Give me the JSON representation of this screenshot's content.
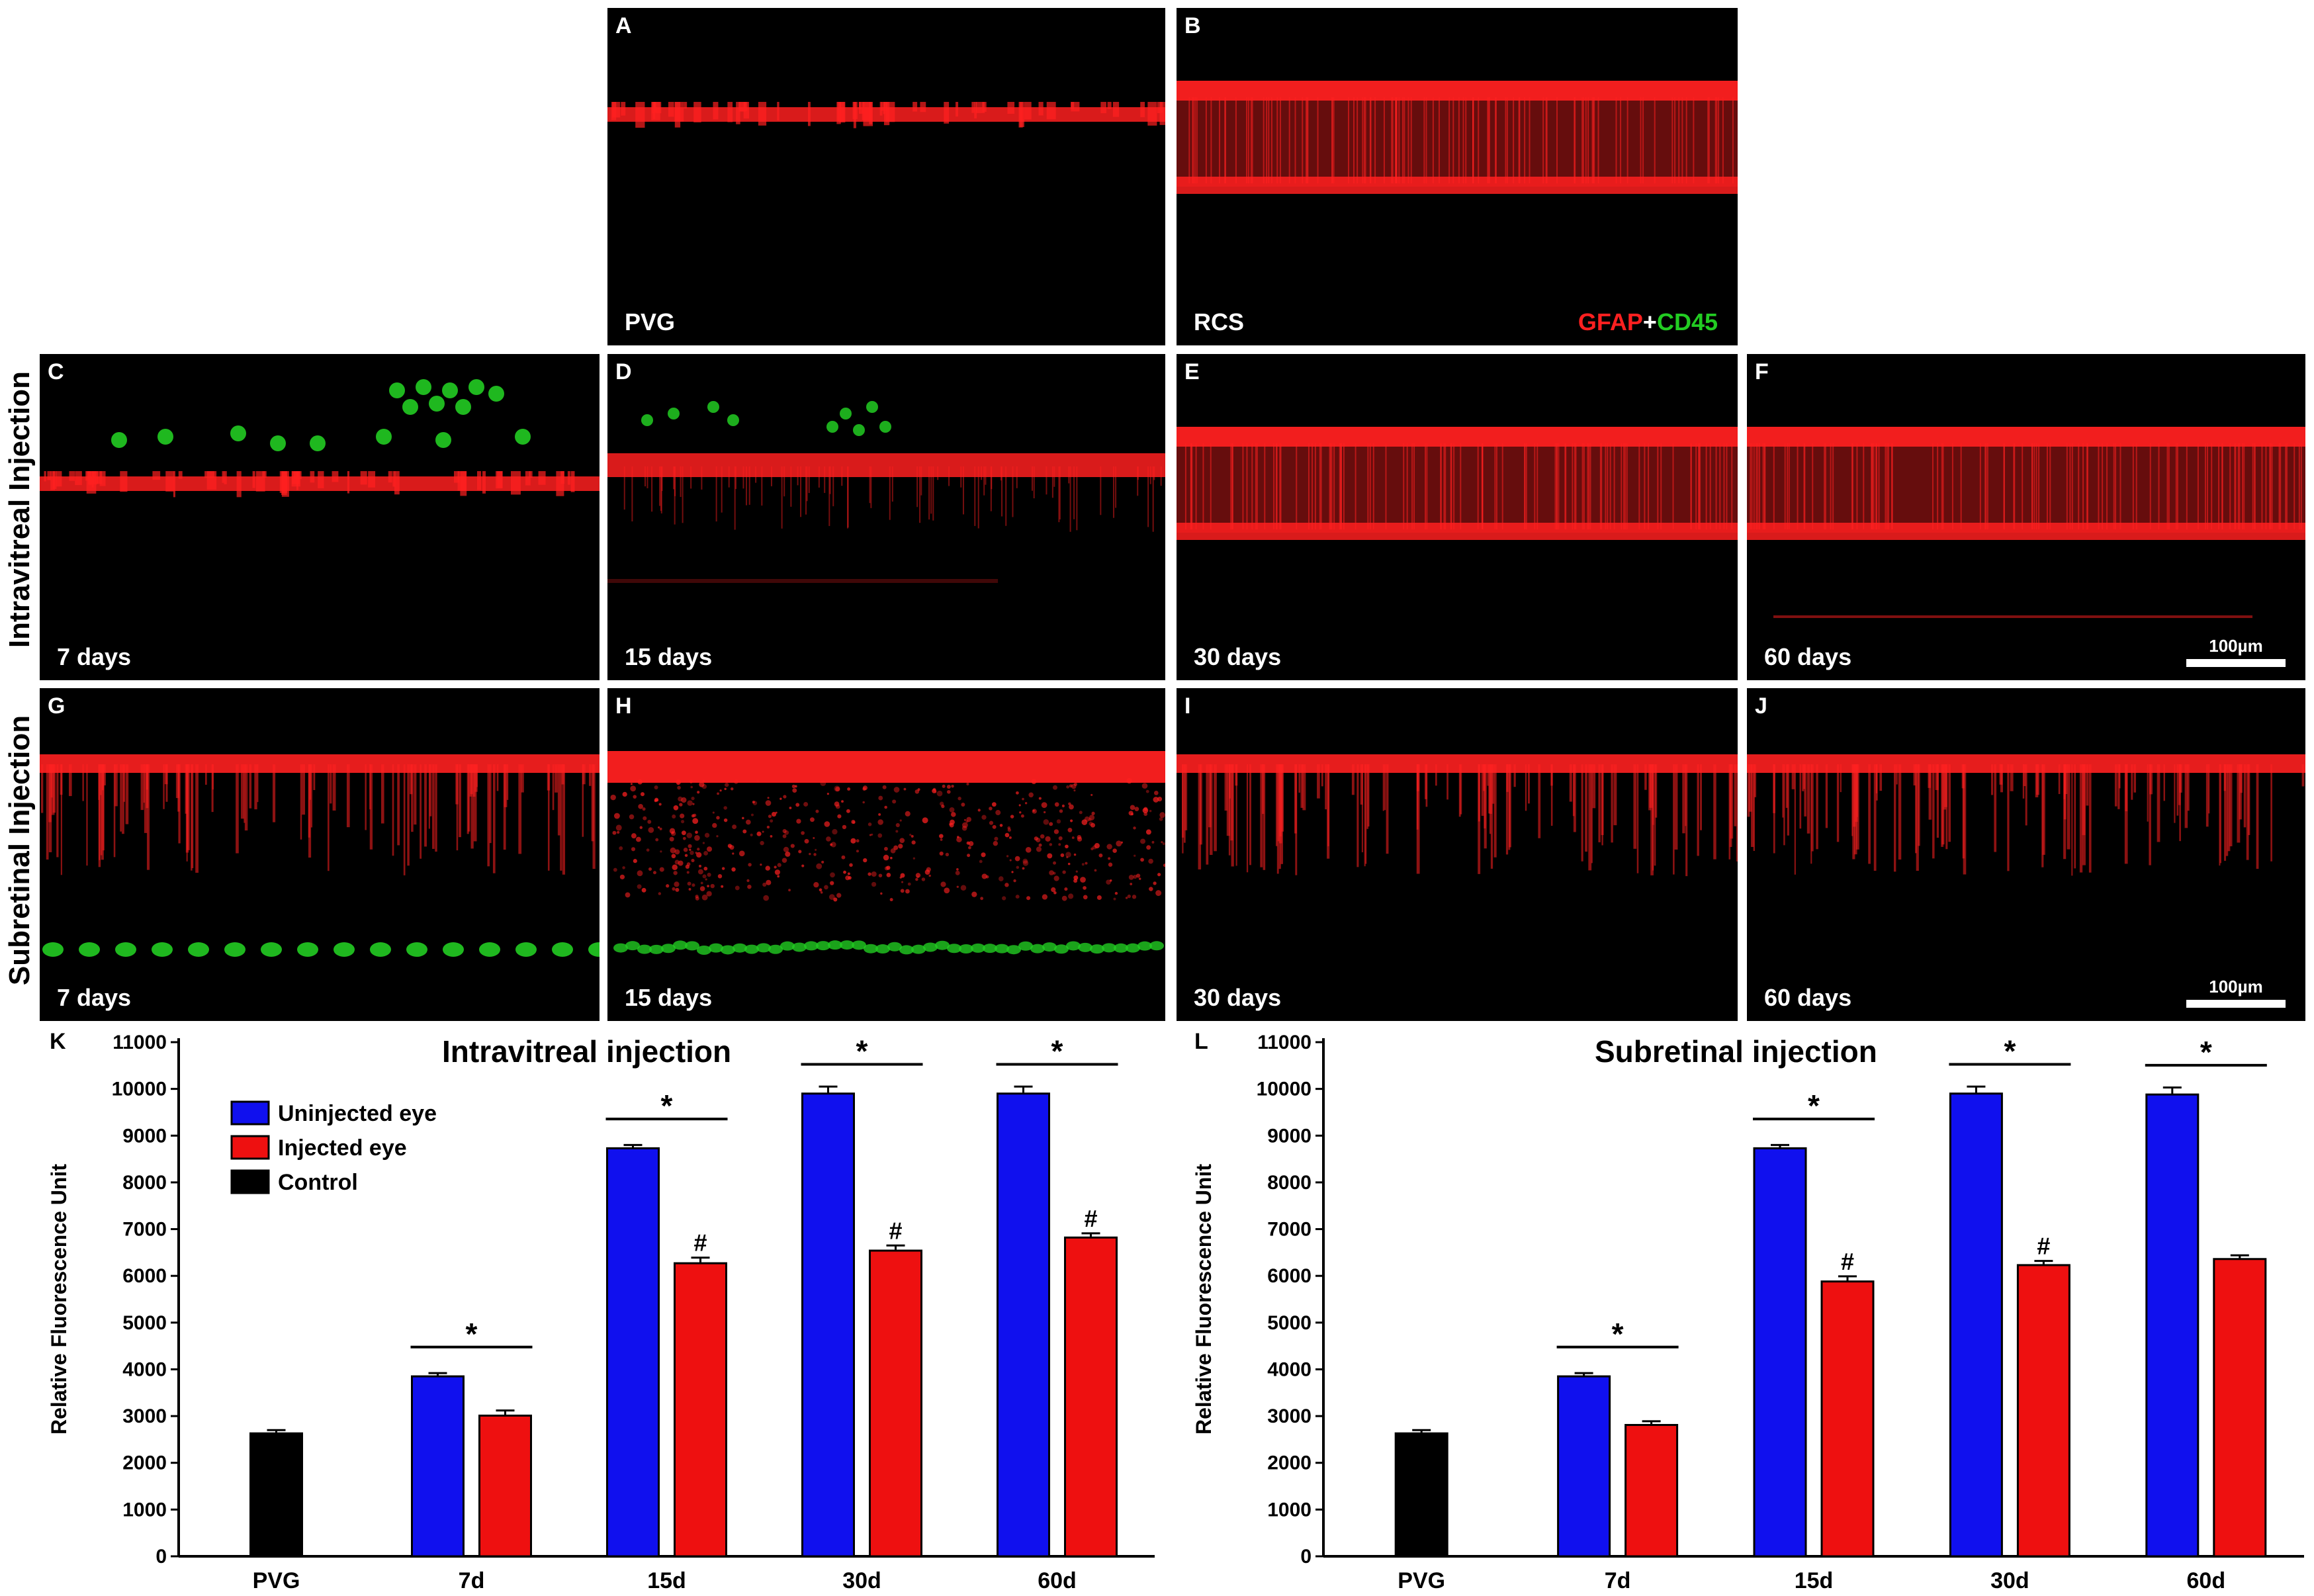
{
  "micrographs": {
    "stain_legend": {
      "part1": "GFAP",
      "plus": "+",
      "part2": "CD45",
      "colors": {
        "gfap": "#ff2020",
        "cd45": "#22cc22"
      }
    },
    "row_labels": {
      "intravitreal": "Intravitreal Injection",
      "subretinal": "Subretinal Injection"
    },
    "scale_bar_label": "100µm",
    "panels": [
      {
        "letter": "A",
        "caption": "PVG"
      },
      {
        "letter": "B",
        "caption": "RCS"
      },
      {
        "letter": "C",
        "caption": "7 days"
      },
      {
        "letter": "D",
        "caption": "15 days"
      },
      {
        "letter": "E",
        "caption": "30 days"
      },
      {
        "letter": "F",
        "caption": "60 days"
      },
      {
        "letter": "G",
        "caption": "7 days"
      },
      {
        "letter": "H",
        "caption": "15 days"
      },
      {
        "letter": "I",
        "caption": "30 days"
      },
      {
        "letter": "J",
        "caption": "60 days"
      }
    ]
  },
  "chart_data": [
    {
      "panel_letter": "K",
      "type": "bar",
      "title": "Intravitreal injection",
      "xlabel": "",
      "ylabel": "Relative Fluorescence Unit",
      "ylim": [
        0,
        11000
      ],
      "yticks": [
        "0",
        "1000",
        "2000",
        "3000",
        "4000",
        "5000",
        "6000",
        "7000",
        "8000",
        "9000",
        "10000",
        "11000"
      ],
      "categories": [
        "PVG",
        "7d",
        "15d",
        "30d",
        "60d"
      ],
      "legend": {
        "position": "top-left",
        "entries": [
          "Uninjected eye",
          "Injected eye",
          "Control"
        ]
      },
      "colors": {
        "uninjected": "#1010ee",
        "injected": "#ee1010",
        "control": "#000000"
      },
      "series": [
        {
          "name": "Uninjected eye",
          "values": [
            null,
            3850,
            8730,
            9900,
            9900
          ],
          "errors": [
            null,
            70,
            70,
            150,
            150
          ]
        },
        {
          "name": "Injected eye",
          "values": [
            null,
            3010,
            6270,
            6540,
            6820
          ],
          "errors": [
            null,
            110,
            120,
            110,
            90
          ]
        },
        {
          "name": "Control",
          "values": [
            2630,
            null,
            null,
            null,
            null
          ],
          "errors": [
            70,
            null,
            null,
            null,
            null
          ]
        }
      ],
      "annotations": {
        "star": "*",
        "hash": "#",
        "star_categories": [
          "7d",
          "15d",
          "30d",
          "60d"
        ],
        "hash_categories": [
          "15d",
          "30d",
          "60d"
        ]
      }
    },
    {
      "panel_letter": "L",
      "type": "bar",
      "title": "Subretinal injection",
      "xlabel": "",
      "ylabel": "Relative Fluorescence Unit",
      "ylim": [
        0,
        11000
      ],
      "yticks": [
        "0",
        "1000",
        "2000",
        "3000",
        "4000",
        "5000",
        "6000",
        "7000",
        "8000",
        "9000",
        "10000",
        "11000"
      ],
      "categories": [
        "PVG",
        "7d",
        "15d",
        "30d",
        "60d"
      ],
      "legend": null,
      "colors": {
        "uninjected": "#1010ee",
        "injected": "#ee1010",
        "control": "#000000"
      },
      "series": [
        {
          "name": "Uninjected eye",
          "values": [
            null,
            3850,
            8730,
            9900,
            9880
          ],
          "errors": [
            null,
            70,
            70,
            150,
            150
          ]
        },
        {
          "name": "Injected eye",
          "values": [
            null,
            2810,
            5880,
            6230,
            6360
          ],
          "errors": [
            null,
            80,
            110,
            90,
            80
          ]
        },
        {
          "name": "Control",
          "values": [
            2630,
            null,
            null,
            null,
            null
          ],
          "errors": [
            70,
            null,
            null,
            null,
            null
          ]
        }
      ],
      "annotations": {
        "star": "*",
        "hash": "#",
        "star_categories": [
          "7d",
          "15d",
          "30d",
          "60d"
        ],
        "hash_categories": [
          "15d",
          "30d"
        ]
      }
    }
  ]
}
